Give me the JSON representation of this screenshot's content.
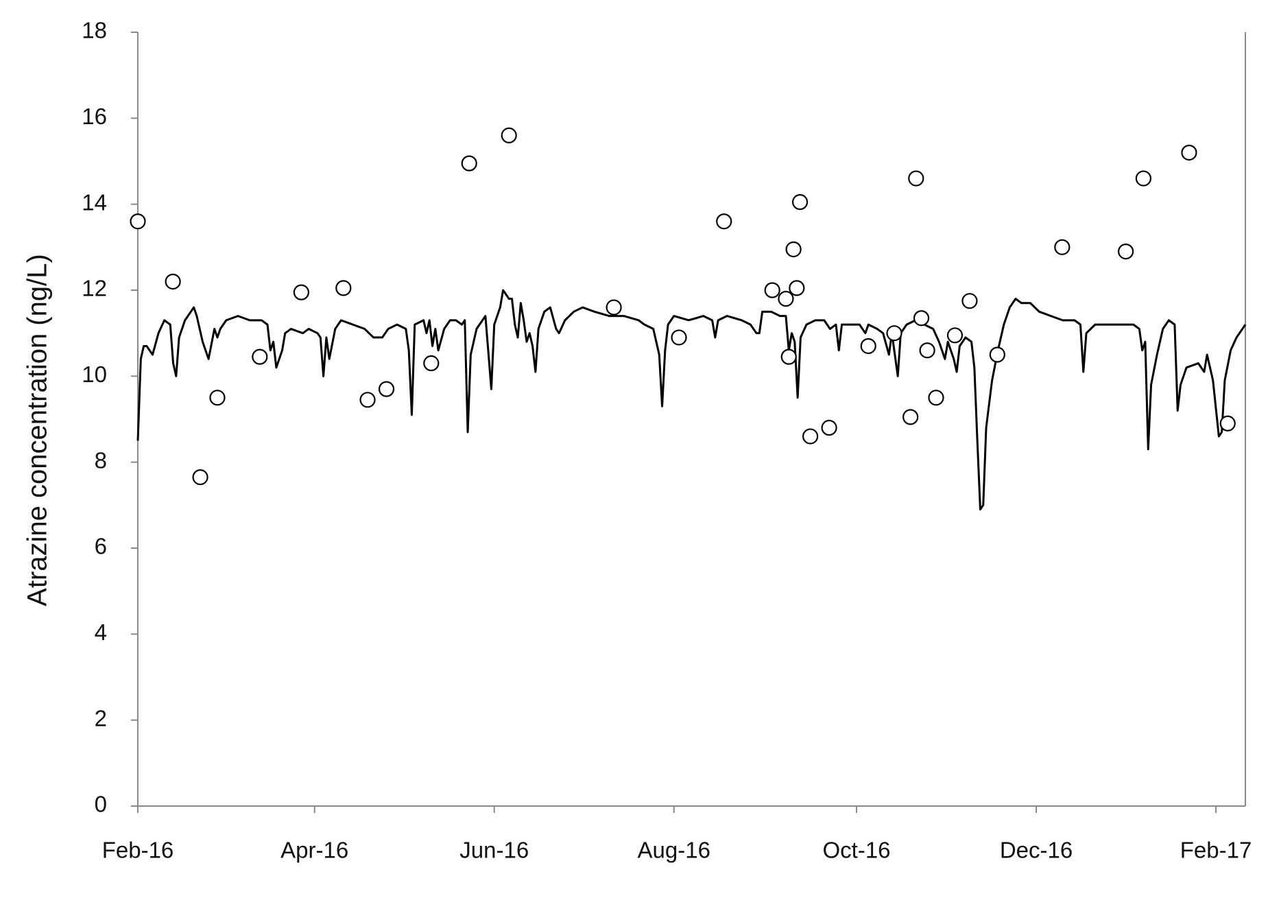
{
  "chart_data": {
    "type": "line",
    "ylabel": "Atrazine concentration (ng/L)",
    "xlim": [
      0,
      376
    ],
    "xticks": [
      {
        "value": 0,
        "label": "Feb-16"
      },
      {
        "value": 60,
        "label": "Apr-16"
      },
      {
        "value": 121,
        "label": "Jun-16"
      },
      {
        "value": 182,
        "label": "Aug-16"
      },
      {
        "value": 244,
        "label": "Oct-16"
      },
      {
        "value": 305,
        "label": "Dec-16"
      },
      {
        "value": 366,
        "label": "Feb-17"
      }
    ],
    "ylim": [
      0,
      18
    ],
    "yticks": [
      0,
      2,
      4,
      6,
      8,
      10,
      12,
      14,
      16,
      18
    ],
    "grid": false,
    "series": [
      {
        "type": "line",
        "color": "#000000",
        "x": [
          0,
          1,
          2,
          3,
          5,
          7,
          9,
          11,
          12,
          13,
          14,
          16,
          18,
          19,
          20,
          22,
          24,
          26,
          27,
          28,
          30,
          34,
          38,
          42,
          44,
          45,
          46,
          47,
          49,
          50,
          52,
          56,
          58,
          61,
          62,
          63,
          64,
          65,
          67,
          69,
          73,
          77,
          80,
          83,
          85,
          88,
          91,
          92,
          93,
          94,
          97,
          98,
          99,
          100,
          101,
          102,
          104,
          106,
          108,
          110,
          111,
          112,
          113,
          115,
          117,
          118,
          120,
          121,
          123,
          124,
          126,
          127,
          128,
          129,
          130,
          131,
          132,
          133,
          134,
          135,
          136,
          138,
          140,
          142,
          143,
          145,
          148,
          151,
          155,
          160,
          165,
          170,
          172,
          175,
          177,
          178,
          179,
          180,
          182,
          187,
          192,
          195,
          196,
          197,
          200,
          205,
          208,
          210,
          211,
          212,
          215,
          218,
          220,
          221,
          222,
          223,
          224,
          225,
          227,
          230,
          233,
          235,
          237,
          238,
          239,
          242,
          245,
          247,
          248,
          251,
          253,
          255,
          256,
          258,
          259,
          261,
          264,
          267,
          270,
          272,
          274,
          275,
          277,
          278,
          279,
          281,
          283,
          284,
          285,
          286,
          287,
          288,
          290,
          292,
          294,
          296,
          298,
          300,
          303,
          306,
          310,
          314,
          318,
          320,
          321,
          322,
          325,
          330,
          335,
          338,
          340,
          341,
          342,
          343,
          344,
          346,
          348,
          350,
          352,
          353,
          354,
          356,
          360,
          362,
          363,
          365,
          367,
          368,
          369,
          371,
          373,
          376
        ],
        "values": [
          8.5,
          10.4,
          10.7,
          10.7,
          10.5,
          11.0,
          11.3,
          11.2,
          10.3,
          10.0,
          10.9,
          11.3,
          11.5,
          11.6,
          11.4,
          10.8,
          10.4,
          11.1,
          10.9,
          11.1,
          11.3,
          11.4,
          11.3,
          11.3,
          11.2,
          10.6,
          10.8,
          10.2,
          10.6,
          11.0,
          11.1,
          11.0,
          11.1,
          11.0,
          10.9,
          10.0,
          10.9,
          10.4,
          11.1,
          11.3,
          11.2,
          11.1,
          10.9,
          10.9,
          11.1,
          11.2,
          11.1,
          10.6,
          9.1,
          11.2,
          11.3,
          11.0,
          11.3,
          10.7,
          11.1,
          10.6,
          11.1,
          11.3,
          11.3,
          11.2,
          11.3,
          8.7,
          10.5,
          11.1,
          11.3,
          11.4,
          9.7,
          11.2,
          11.6,
          12.0,
          11.8,
          11.8,
          11.2,
          10.9,
          11.7,
          11.3,
          10.8,
          11.0,
          10.7,
          10.1,
          11.1,
          11.5,
          11.6,
          11.1,
          11.0,
          11.3,
          11.5,
          11.6,
          11.5,
          11.4,
          11.4,
          11.3,
          11.2,
          11.1,
          10.5,
          9.3,
          10.6,
          11.2,
          11.4,
          11.3,
          11.4,
          11.3,
          10.9,
          11.3,
          11.4,
          11.3,
          11.2,
          11.0,
          11.0,
          11.5,
          11.5,
          11.4,
          11.4,
          10.6,
          11.0,
          10.8,
          9.5,
          10.9,
          11.2,
          11.3,
          11.3,
          11.1,
          11.2,
          10.6,
          11.2,
          11.2,
          11.2,
          11.0,
          11.2,
          11.1,
          11.0,
          10.5,
          11.0,
          10.0,
          11.0,
          11.2,
          11.3,
          11.2,
          11.1,
          10.8,
          10.4,
          10.8,
          10.4,
          10.1,
          10.7,
          10.9,
          10.8,
          10.2,
          8.5,
          6.9,
          7.0,
          8.8,
          9.9,
          10.6,
          11.2,
          11.6,
          11.8,
          11.7,
          11.7,
          11.5,
          11.4,
          11.3,
          11.3,
          11.2,
          10.1,
          11.0,
          11.2,
          11.2,
          11.2,
          11.2,
          11.1,
          10.6,
          10.8,
          8.3,
          9.8,
          10.5,
          11.1,
          11.3,
          11.2,
          9.2,
          9.8,
          10.2,
          10.3,
          10.1,
          10.5,
          9.9,
          8.6,
          8.7,
          9.9,
          10.6,
          10.9,
          11.2
        ]
      },
      {
        "type": "scatter",
        "color": "#000000",
        "x": [
          0,
          11.9,
          21.2,
          27,
          41.4,
          55.5,
          69.8,
          78,
          84.4,
          99.6,
          112.5,
          126,
          161.6,
          183.7,
          199,
          215.4,
          220,
          221,
          222.6,
          223.7,
          224.8,
          228.3,
          234.7,
          248,
          256.8,
          262.3,
          264.2,
          266,
          268,
          271,
          277.4,
          282.4,
          291.8,
          313.8,
          335.4,
          341.4,
          356.9,
          370
        ],
        "values": [
          13.6,
          12.2,
          7.65,
          9.5,
          10.45,
          11.95,
          12.05,
          9.45,
          9.7,
          10.3,
          14.95,
          15.6,
          11.6,
          10.9,
          13.6,
          12.0,
          11.8,
          10.45,
          12.95,
          12.05,
          14.05,
          8.6,
          8.8,
          10.7,
          11.0,
          9.05,
          14.6,
          11.35,
          10.6,
          9.5,
          10.95,
          11.75,
          10.5,
          13.0,
          12.9,
          14.6,
          15.2,
          8.9
        ]
      }
    ]
  }
}
